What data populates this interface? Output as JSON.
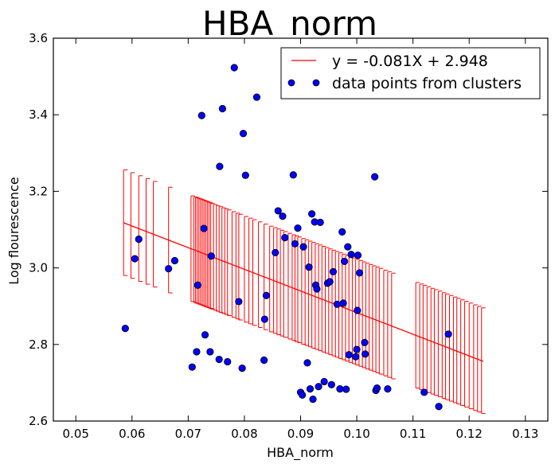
{
  "chart_data": {
    "type": "scatter",
    "title": "HBA_norm",
    "xlabel": "HBA_norm",
    "ylabel": "Log flourescence",
    "xlim": [
      0.046,
      0.134
    ],
    "ylim": [
      2.6,
      3.6
    ],
    "xticks": [
      "0.05",
      "0.06",
      "0.07",
      "0.08",
      "0.09",
      "0.10",
      "0.11",
      "0.12",
      "0.13"
    ],
    "xtick_values": [
      0.05,
      0.06,
      0.07,
      0.08,
      0.09,
      0.1,
      0.11,
      0.12,
      0.13
    ],
    "yticks": [
      "2.6",
      "2.8",
      "3.0",
      "3.2",
      "3.4",
      "3.6"
    ],
    "ytick_values": [
      2.6,
      2.8,
      3.0,
      3.2,
      3.4,
      3.6
    ],
    "grid": false,
    "legend_position": "top-right",
    "fit": {
      "name": "y = -0.081X + 2.948",
      "color": "#ff0000",
      "x_start": 0.0585,
      "x_end": 0.1225,
      "y_start": 3.118,
      "y_end": 2.756,
      "error_half_width": 0.138,
      "error_bar_x": [
        0.0585,
        0.0598,
        0.0612,
        0.0625,
        0.0638,
        0.0665,
        0.0705,
        0.071,
        0.0713,
        0.0716,
        0.0719,
        0.0722,
        0.0725,
        0.0728,
        0.0731,
        0.0734,
        0.0737,
        0.074,
        0.0745,
        0.075,
        0.0755,
        0.076,
        0.0765,
        0.077,
        0.0778,
        0.0785,
        0.079,
        0.08,
        0.0808,
        0.0815,
        0.0825,
        0.0835,
        0.0845,
        0.0852,
        0.0858,
        0.0864,
        0.087,
        0.0878,
        0.0885,
        0.089,
        0.0895,
        0.0902,
        0.0908,
        0.0914,
        0.092,
        0.0926,
        0.0932,
        0.0938,
        0.0944,
        0.095,
        0.0956,
        0.0962,
        0.0968,
        0.0974,
        0.098,
        0.0986,
        0.0992,
        0.0998,
        0.1004,
        0.101,
        0.1016,
        0.1022,
        0.1028,
        0.1034,
        0.104,
        0.1048,
        0.1055,
        0.1062,
        0.1105,
        0.1112,
        0.1118,
        0.1125,
        0.1132,
        0.1138,
        0.1145,
        0.1152,
        0.1158,
        0.1165,
        0.1172,
        0.1178,
        0.1185,
        0.1192,
        0.12,
        0.1208,
        0.1215,
        0.1222
      ]
    },
    "series": [
      {
        "name": "data points from clusters",
        "color": "#0000ff",
        "points": [
          [
            0.0588,
            2.842
          ],
          [
            0.0605,
            3.024
          ],
          [
            0.0612,
            3.075
          ],
          [
            0.0665,
            2.998
          ],
          [
            0.0676,
            3.019
          ],
          [
            0.0707,
            2.741
          ],
          [
            0.0715,
            2.781
          ],
          [
            0.0717,
            2.955
          ],
          [
            0.0724,
            3.398
          ],
          [
            0.0728,
            3.103
          ],
          [
            0.073,
            2.825
          ],
          [
            0.0739,
            2.781
          ],
          [
            0.0741,
            3.031
          ],
          [
            0.0755,
            2.761
          ],
          [
            0.0756,
            3.265
          ],
          [
            0.0761,
            3.416
          ],
          [
            0.077,
            2.755
          ],
          [
            0.0782,
            3.523
          ],
          [
            0.079,
            2.912
          ],
          [
            0.0796,
            2.738
          ],
          [
            0.0798,
            3.351
          ],
          [
            0.0802,
            3.242
          ],
          [
            0.0822,
            3.446
          ],
          [
            0.0835,
            2.759
          ],
          [
            0.0836,
            2.866
          ],
          [
            0.0839,
            2.928
          ],
          [
            0.0855,
            3.04
          ],
          [
            0.086,
            3.149
          ],
          [
            0.0868,
            3.135
          ],
          [
            0.0872,
            3.079
          ],
          [
            0.0887,
            3.243
          ],
          [
            0.089,
            3.063
          ],
          [
            0.0895,
            3.104
          ],
          [
            0.09,
            2.675
          ],
          [
            0.0903,
            2.668
          ],
          [
            0.0905,
            3.055
          ],
          [
            0.0912,
            2.752
          ],
          [
            0.0915,
            3.002
          ],
          [
            0.0917,
            2.684
          ],
          [
            0.092,
            3.141
          ],
          [
            0.0922,
            2.657
          ],
          [
            0.0925,
            3.12
          ],
          [
            0.0927,
            2.955
          ],
          [
            0.0929,
            2.945
          ],
          [
            0.0932,
            2.69
          ],
          [
            0.0935,
            3.119
          ],
          [
            0.0942,
            2.703
          ],
          [
            0.0948,
            2.96
          ],
          [
            0.0952,
            2.964
          ],
          [
            0.0955,
            2.695
          ],
          [
            0.0958,
            2.99
          ],
          [
            0.0965,
            2.905
          ],
          [
            0.097,
            2.684
          ],
          [
            0.0974,
            3.094
          ],
          [
            0.0976,
            2.908
          ],
          [
            0.0978,
            3.017
          ],
          [
            0.0981,
            2.683
          ],
          [
            0.0984,
            3.055
          ],
          [
            0.0986,
            2.773
          ],
          [
            0.099,
            3.035
          ],
          [
            0.0998,
            2.768
          ],
          [
            0.1,
            2.787
          ],
          [
            0.1001,
            2.889
          ],
          [
            0.1002,
            3.033
          ],
          [
            0.1005,
            2.987
          ],
          [
            0.1014,
            2.805
          ],
          [
            0.1015,
            2.775
          ],
          [
            0.1032,
            3.238
          ],
          [
            0.1034,
            2.68
          ],
          [
            0.1036,
            2.686
          ],
          [
            0.1055,
            2.684
          ],
          [
            0.112,
            2.675
          ],
          [
            0.1146,
            2.638
          ],
          [
            0.1163,
            2.827
          ]
        ]
      }
    ]
  }
}
